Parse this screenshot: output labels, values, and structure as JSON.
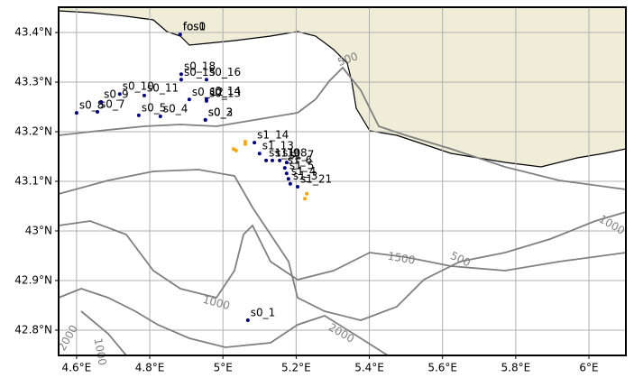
{
  "chart_data": {
    "type": "map",
    "xlim": [
      4.551,
      6.101
    ],
    "ylim": [
      42.749,
      43.451
    ],
    "xticks": [
      {
        "value": 4.6,
        "label": "4.6°E"
      },
      {
        "value": 4.8,
        "label": "4.8°E"
      },
      {
        "value": 5.0,
        "label": "5°E"
      },
      {
        "value": 5.2,
        "label": "5.2°E"
      },
      {
        "value": 5.4,
        "label": "5.4°E"
      },
      {
        "value": 5.6,
        "label": "5.6°E"
      },
      {
        "value": 5.8,
        "label": "5.8°E"
      },
      {
        "value": 6.0,
        "label": "6°E"
      }
    ],
    "yticks": [
      {
        "value": 42.8,
        "label": "42.8°N"
      },
      {
        "value": 42.9,
        "label": "42.9°N"
      },
      {
        "value": 43.0,
        "label": "43°N"
      },
      {
        "value": 43.1,
        "label": "43.1°N"
      },
      {
        "value": 43.2,
        "label": "43.2°N"
      },
      {
        "value": 43.3,
        "label": "43.3°N"
      },
      {
        "value": 43.4,
        "label": "43.4°N"
      }
    ],
    "grid": true,
    "contour_labels": [
      "500",
      "1000",
      "1500",
      "2000",
      "500",
      "1000",
      "1000",
      "2000"
    ],
    "series": [
      {
        "color": "#000080",
        "labels": [
          "s0_8",
          "s0_7",
          "s0_9",
          "s0_10",
          "s0_5",
          "s0_4",
          "s0_11",
          "s0_12",
          "s0_3",
          "s0_2",
          "s0_13",
          "s0_14",
          "s0_15",
          "s0_16",
          "s0_18",
          "s0_1",
          "fos0",
          "fos1",
          "s1_14",
          "s1_13",
          "s1_10",
          "s1_9",
          "s1_8",
          "s1_7",
          "s1_6",
          "s1_5",
          "s1_4",
          "s1_3",
          "s1_21"
        ],
        "x": [
          4.6,
          4.657,
          4.667,
          4.718,
          4.77,
          4.829,
          4.785,
          4.908,
          4.952,
          4.952,
          4.955,
          4.955,
          4.886,
          4.955,
          4.886,
          5.068,
          4.883,
          4.883,
          5.086,
          5.1,
          5.118,
          5.135,
          5.155,
          5.174,
          5.169,
          5.174,
          5.179,
          5.184,
          5.204
        ],
        "y": [
          43.238,
          43.24,
          43.26,
          43.276,
          43.233,
          43.231,
          43.273,
          43.265,
          43.224,
          43.224,
          43.262,
          43.266,
          43.305,
          43.305,
          43.316,
          42.82,
          43.396,
          43.396,
          43.178,
          43.156,
          43.142,
          43.142,
          43.142,
          43.138,
          43.127,
          43.116,
          43.105,
          43.095,
          43.089
        ]
      },
      {
        "color": "#ffa500",
        "x": [
          5.029,
          5.036,
          5.061,
          5.061,
          5.229,
          5.224
        ],
        "y": [
          43.165,
          43.162,
          43.18,
          43.175,
          43.075,
          43.065
        ]
      }
    ]
  }
}
